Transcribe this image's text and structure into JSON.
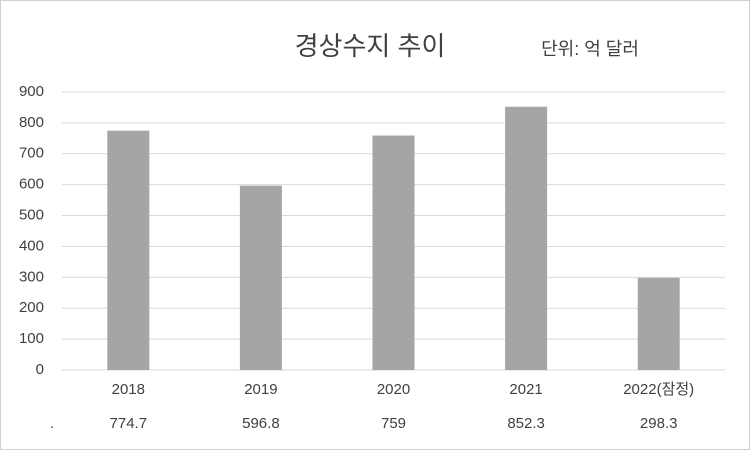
{
  "chart_data": {
    "type": "bar",
    "title": "경상수지 추이",
    "subtitle": "단위: 억 달러",
    "categories": [
      "2018",
      "2019",
      "2020",
      "2021",
      "2022(잠정)"
    ],
    "values": [
      774.7,
      596.8,
      759,
      852.3,
      298.3
    ],
    "data_table_label": ".",
    "color": "#a5a5a5",
    "ylim": [
      0,
      900
    ],
    "yticks": [
      0,
      100,
      200,
      300,
      400,
      500,
      600,
      700,
      800,
      900
    ],
    "grid": true
  }
}
